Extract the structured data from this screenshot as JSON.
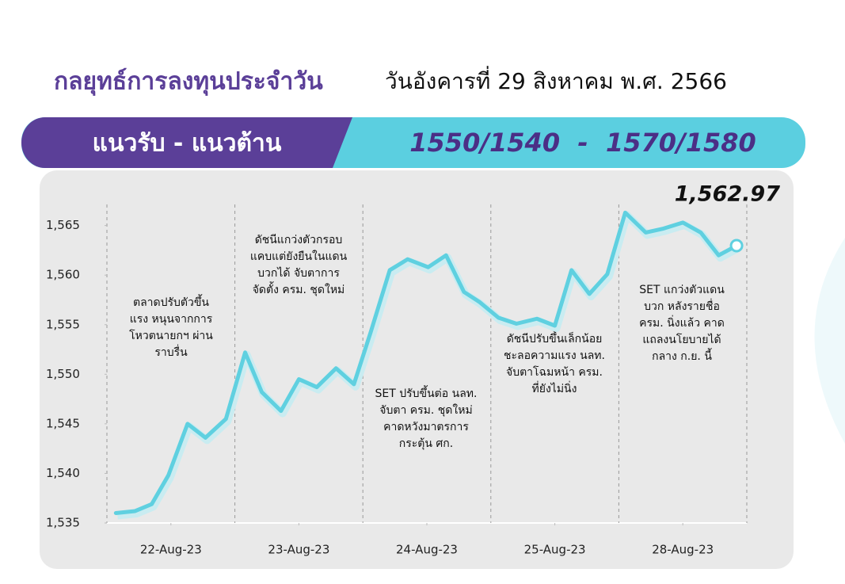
{
  "header": {
    "title": "กลยุทธ์การลงทุนประจำวัน",
    "date": "วันอังคารที่ 29 สิงหาคม พ.ศ. 2566",
    "banner_label": "แนวรับ - แนวต้าน",
    "banner_levels": "1550/1540  -  1570/1580"
  },
  "chart_data": {
    "type": "line",
    "x": [
      0.07,
      0.22,
      0.35,
      0.48,
      0.63,
      0.77,
      0.93,
      1.08,
      1.21,
      1.36,
      1.5,
      1.64,
      1.79,
      1.93,
      2.06,
      2.21,
      2.35,
      2.51,
      2.65,
      2.79,
      2.91,
      3.06,
      3.2,
      3.36,
      3.5,
      3.63,
      3.77,
      3.91,
      4.05,
      4.21,
      4.35,
      4.5,
      4.64,
      4.78,
      4.92
    ],
    "series": [
      {
        "color": "#5fd0e0",
        "values": [
          1536.0,
          1536.2,
          1536.9,
          1539.8,
          1545.0,
          1543.6,
          1545.5,
          1552.2,
          1548.2,
          1546.3,
          1549.5,
          1548.7,
          1550.6,
          1549.0,
          1554.2,
          1560.5,
          1561.6,
          1560.8,
          1562.0,
          1558.3,
          1557.3,
          1555.7,
          1555.1,
          1555.6,
          1554.9,
          1560.5,
          1558.1,
          1560.1,
          1566.3,
          1564.3,
          1564.7,
          1565.3,
          1564.3,
          1562.0,
          1562.97
        ]
      }
    ],
    "last_value_label": "1,562.97",
    "xlim": [
      0,
      5
    ],
    "xticks": [
      {
        "value": 0.5,
        "label": "22-Aug-23"
      },
      {
        "value": 1.5,
        "label": "23-Aug-23"
      },
      {
        "value": 2.5,
        "label": "24-Aug-23"
      },
      {
        "value": 3.5,
        "label": "25-Aug-23"
      },
      {
        "value": 4.5,
        "label": "28-Aug-23"
      }
    ],
    "ylim": [
      1535,
      1567
    ],
    "yticks": [
      {
        "value": 1535,
        "label": "1,535"
      },
      {
        "value": 1540,
        "label": "1,540"
      },
      {
        "value": 1545,
        "label": "1,545"
      },
      {
        "value": 1550,
        "label": "1,550"
      },
      {
        "value": 1555,
        "label": "1,555"
      },
      {
        "value": 1560,
        "label": "1,560"
      },
      {
        "value": 1565,
        "label": "1,565"
      }
    ],
    "annotations": [
      {
        "lines": [
          "ตลาดปรับตัวขึ้น",
          "แรง หนุนจากการ",
          "โหวตนายกฯ ผ่าน",
          "ราบรื่น"
        ]
      },
      {
        "lines": [
          "ดัชนีแกว่งตัวกรอบ",
          "แคบแต่ยังยืนในแดน",
          "บวกได้ จับตาการ",
          "จัดตั้ง ครม. ชุดใหม่"
        ]
      },
      {
        "lines": [
          "SET ปรับขึ้นต่อ นลท.",
          "จับตา ครม. ชุดใหม่",
          "คาดหวังมาตรการ",
          "กระตุ้น ศก."
        ]
      },
      {
        "lines": [
          "ดัชนีปรับขึ้นเล็กน้อย",
          "ชะลอความแรง นลท.",
          "จับตาโฉมหน้า ครม.",
          "ที่ยังไม่นิ่ง"
        ]
      },
      {
        "lines": [
          "SET แกว่งตัวแดน",
          "บวก หลังรายชื่อ",
          "ครม. นิ่งแล้ว คาด",
          "แถลงนโยบายได้",
          "กลาง ก.ย. นี้"
        ]
      }
    ]
  }
}
